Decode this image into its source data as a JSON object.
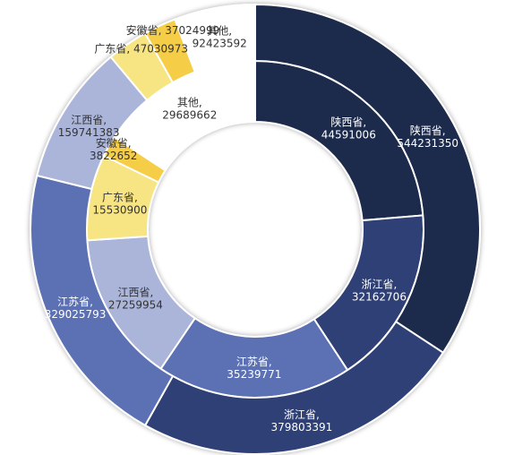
{
  "chart_data": {
    "type": "pie",
    "subtype": "nested-donut",
    "rings": [
      {
        "name": "",
        "position": "inner",
        "slices": [
          {
            "label": "陕西省",
            "value": 44591006,
            "value_text": "44591006",
            "color": "#1f2a4b"
          },
          {
            "label": "浙江省",
            "value": 32162706,
            "value_text": "32162706",
            "color": "#2f3f74"
          },
          {
            "label": "江苏省",
            "value": 35239771,
            "value_text": "35239771",
            "color": "#5b6fb4"
          },
          {
            "label": "江西省",
            "value": 27259954,
            "value_text": "27259954",
            "color": "#abb5d9"
          },
          {
            "label": "广东省",
            "value": 15530900,
            "value_text": "15530900",
            "color": "#f7e483"
          },
          {
            "label": "安徽省",
            "value": 3822652,
            "value_text": "3822652",
            "color": "#f5cd47"
          },
          {
            "label": "其他",
            "value": 29689662,
            "value_text": "29689662",
            "color": "#ffffff"
          }
        ]
      },
      {
        "name": "",
        "position": "outer",
        "slices": [
          {
            "label": "陕西省",
            "value": 544231350,
            "value_text": "544231350",
            "color": "#1f2a4b"
          },
          {
            "label": "浙江省",
            "value": 379803391,
            "value_text": "379803391",
            "color": "#2f3f74"
          },
          {
            "label": "江苏省",
            "value": 329025793,
            "value_text": "329025793",
            "color": "#5b6fb4"
          },
          {
            "label": "江西省",
            "value": 159741383,
            "value_text": "159741383",
            "color": "#abb5d9"
          },
          {
            "label": "广东省",
            "value": 47030973,
            "value_text": "47030973",
            "color": "#f7e483"
          },
          {
            "label": "安徽省",
            "value": 37024999,
            "value_text": "37024999",
            "color": "#f5cd47"
          },
          {
            "label": "其他",
            "value": 92423592,
            "value_text": "92423592",
            "color": "#ffffff"
          }
        ]
      }
    ],
    "title": "",
    "legend": "none",
    "label_format": "{name}, {value}",
    "start_angle": "12 o'clock",
    "direction": "clockwise"
  }
}
